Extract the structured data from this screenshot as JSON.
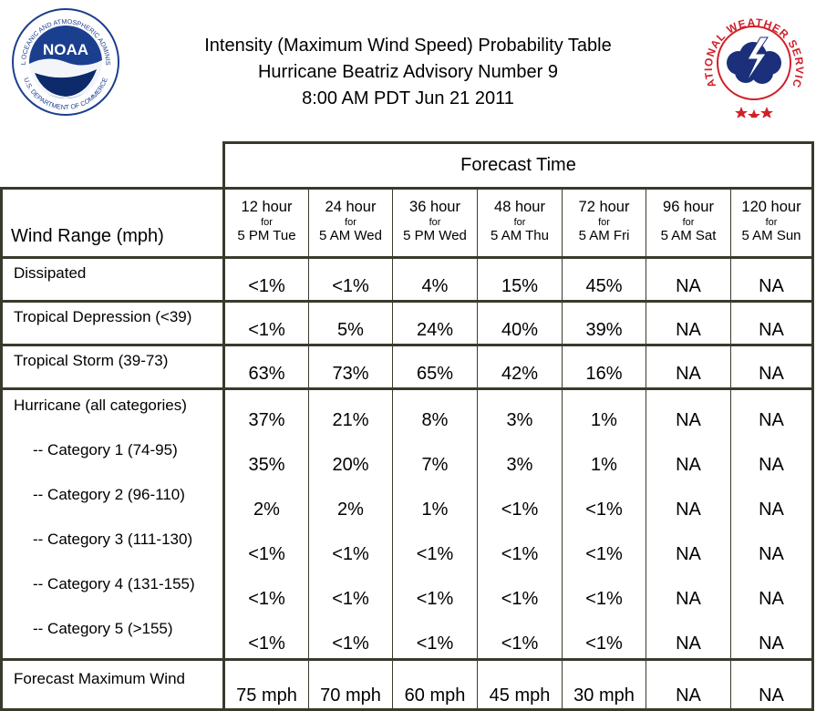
{
  "header": {
    "title_line1": "Intensity (Maximum Wind Speed) Probability Table",
    "title_line2": "Hurricane Beatriz Advisory Number 9",
    "title_line3": "8:00 AM PDT Jun 21 2011"
  },
  "logos": {
    "noaa": {
      "icon": "noaa-logo",
      "center_text": "NOAA",
      "ring_text": "NATIONAL OCEANIC AND ATMOSPHERIC ADMINISTRATION",
      "bottom_text": "U.S. DEPARTMENT OF COMMERCE"
    },
    "nws": {
      "icon": "nws-logo",
      "ring_text": "NATIONAL WEATHER SERVICE"
    }
  },
  "colors": {
    "border": "#3a3a2c",
    "noaa_blue": "#1b3f8f",
    "noaa_navy": "#0d2a6b",
    "nws_red": "#d0202a",
    "nws_cloud": "#1b2f7a"
  },
  "table": {
    "forecast_time_label": "Forecast Time",
    "wind_range_label": "Wind Range (mph)",
    "for_word": "for",
    "columns": [
      {
        "hour": "12 hour",
        "valid": "5 PM Tue"
      },
      {
        "hour": "24 hour",
        "valid": "5 AM Wed"
      },
      {
        "hour": "36 hour",
        "valid": "5 PM Wed"
      },
      {
        "hour": "48 hour",
        "valid": "5 AM Thu"
      },
      {
        "hour": "72 hour",
        "valid": "5 AM Fri"
      },
      {
        "hour": "96 hour",
        "valid": "5 AM Sat"
      },
      {
        "hour": "120 hour",
        "valid": "5 AM Sun"
      }
    ],
    "rows": [
      {
        "label": "Dissipated",
        "values": [
          "<1%",
          "<1%",
          "4%",
          "15%",
          "45%",
          "NA",
          "NA"
        ]
      },
      {
        "label": "Tropical Depression (<39)",
        "values": [
          "<1%",
          "5%",
          "24%",
          "40%",
          "39%",
          "NA",
          "NA"
        ]
      },
      {
        "label": "Tropical Storm (39-73)",
        "values": [
          "63%",
          "73%",
          "65%",
          "42%",
          "16%",
          "NA",
          "NA"
        ]
      },
      {
        "label": "Hurricane (all categories)",
        "values": [
          "37%",
          "21%",
          "8%",
          "3%",
          "1%",
          "NA",
          "NA"
        ]
      },
      {
        "label": "-- Category 1 (74-95)",
        "values": [
          "35%",
          "20%",
          "7%",
          "3%",
          "1%",
          "NA",
          "NA"
        ]
      },
      {
        "label": "-- Category 2 (96-110)",
        "values": [
          "2%",
          "2%",
          "1%",
          "<1%",
          "<1%",
          "NA",
          "NA"
        ]
      },
      {
        "label": "-- Category 3 (111-130)",
        "values": [
          "<1%",
          "<1%",
          "<1%",
          "<1%",
          "<1%",
          "NA",
          "NA"
        ]
      },
      {
        "label": "-- Category 4 (131-155)",
        "values": [
          "<1%",
          "<1%",
          "<1%",
          "<1%",
          "<1%",
          "NA",
          "NA"
        ]
      },
      {
        "label": "-- Category 5 (>155)",
        "values": [
          "<1%",
          "<1%",
          "<1%",
          "<1%",
          "<1%",
          "NA",
          "NA"
        ]
      },
      {
        "label": "Forecast Maximum Wind",
        "values": [
          "75 mph",
          "70 mph",
          "60 mph",
          "45 mph",
          "30 mph",
          "NA",
          "NA"
        ]
      }
    ]
  }
}
